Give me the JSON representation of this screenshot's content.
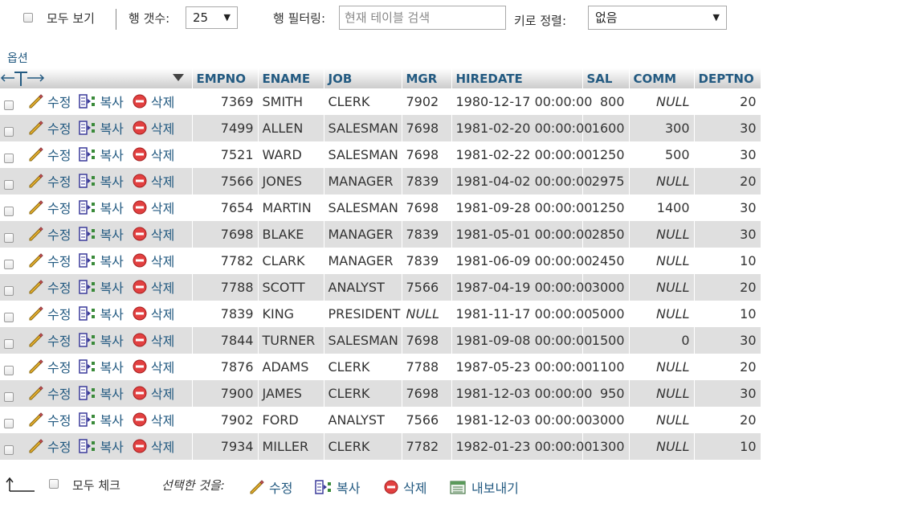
{
  "topbar": {
    "show_all_label": "모두 보기",
    "row_count_label": "행 갯수:",
    "row_count_value": "25",
    "row_filter_label": "행 필터링:",
    "row_filter_placeholder": "현재 테이블 검색",
    "sort_by_key_label": "키로 정렬:",
    "sort_by_key_value": "없음"
  },
  "options_label": "옵션",
  "table": {
    "columns": [
      "EMPNO",
      "ENAME",
      "JOB",
      "MGR",
      "HIREDATE",
      "SAL",
      "COMM",
      "DEPTNO"
    ],
    "action_labels": {
      "edit": "수정",
      "copy": "복사",
      "delete": "삭제"
    },
    "rows": [
      {
        "empno": "7369",
        "ename": "SMITH",
        "job": "CLERK",
        "mgr": "7902",
        "hiredate": "1980-12-17 00:00:00",
        "sal": "800",
        "comm": "NULL",
        "deptno": "20"
      },
      {
        "empno": "7499",
        "ename": "ALLEN",
        "job": "SALESMAN",
        "mgr": "7698",
        "hiredate": "1981-02-20 00:00:00",
        "sal": "1600",
        "comm": "300",
        "deptno": "30"
      },
      {
        "empno": "7521",
        "ename": "WARD",
        "job": "SALESMAN",
        "mgr": "7698",
        "hiredate": "1981-02-22 00:00:00",
        "sal": "1250",
        "comm": "500",
        "deptno": "30"
      },
      {
        "empno": "7566",
        "ename": "JONES",
        "job": "MANAGER",
        "mgr": "7839",
        "hiredate": "1981-04-02 00:00:00",
        "sal": "2975",
        "comm": "NULL",
        "deptno": "20"
      },
      {
        "empno": "7654",
        "ename": "MARTIN",
        "job": "SALESMAN",
        "mgr": "7698",
        "hiredate": "1981-09-28 00:00:00",
        "sal": "1250",
        "comm": "1400",
        "deptno": "30"
      },
      {
        "empno": "7698",
        "ename": "BLAKE",
        "job": "MANAGER",
        "mgr": "7839",
        "hiredate": "1981-05-01 00:00:00",
        "sal": "2850",
        "comm": "NULL",
        "deptno": "30"
      },
      {
        "empno": "7782",
        "ename": "CLARK",
        "job": "MANAGER",
        "mgr": "7839",
        "hiredate": "1981-06-09 00:00:00",
        "sal": "2450",
        "comm": "NULL",
        "deptno": "10"
      },
      {
        "empno": "7788",
        "ename": "SCOTT",
        "job": "ANALYST",
        "mgr": "7566",
        "hiredate": "1987-04-19 00:00:00",
        "sal": "3000",
        "comm": "NULL",
        "deptno": "20"
      },
      {
        "empno": "7839",
        "ename": "KING",
        "job": "PRESIDENT",
        "mgr": "NULL",
        "hiredate": "1981-11-17 00:00:00",
        "sal": "5000",
        "comm": "NULL",
        "deptno": "10"
      },
      {
        "empno": "7844",
        "ename": "TURNER",
        "job": "SALESMAN",
        "mgr": "7698",
        "hiredate": "1981-09-08 00:00:00",
        "sal": "1500",
        "comm": "0",
        "deptno": "30"
      },
      {
        "empno": "7876",
        "ename": "ADAMS",
        "job": "CLERK",
        "mgr": "7788",
        "hiredate": "1987-05-23 00:00:00",
        "sal": "1100",
        "comm": "NULL",
        "deptno": "20"
      },
      {
        "empno": "7900",
        "ename": "JAMES",
        "job": "CLERK",
        "mgr": "7698",
        "hiredate": "1981-12-03 00:00:00",
        "sal": "950",
        "comm": "NULL",
        "deptno": "30"
      },
      {
        "empno": "7902",
        "ename": "FORD",
        "job": "ANALYST",
        "mgr": "7566",
        "hiredate": "1981-12-03 00:00:00",
        "sal": "3000",
        "comm": "NULL",
        "deptno": "20"
      },
      {
        "empno": "7934",
        "ename": "MILLER",
        "job": "CLERK",
        "mgr": "7782",
        "hiredate": "1982-01-23 00:00:00",
        "sal": "1300",
        "comm": "NULL",
        "deptno": "10"
      }
    ]
  },
  "bottombar": {
    "check_all_label": "모두 체크",
    "with_selected_label": "선택한 것을:",
    "edit_label": "수정",
    "copy_label": "복사",
    "delete_label": "삭제",
    "export_label": "내보내기"
  },
  "colors": {
    "link": "#235a81",
    "row_even": "#dfdfdf",
    "null_text": "#999999"
  }
}
